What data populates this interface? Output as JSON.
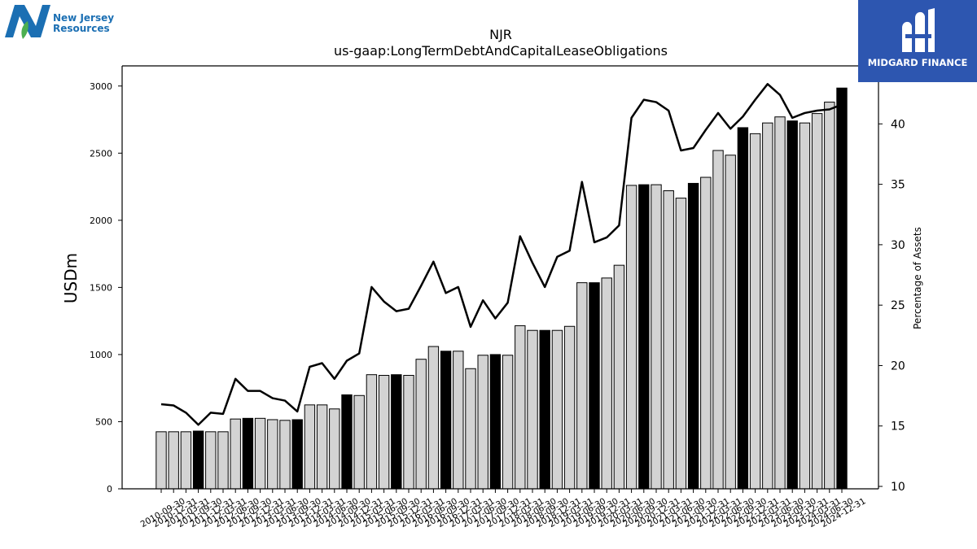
{
  "header": {
    "title_line1": "NJR",
    "title_line2": "us-gaap:LongTermDebtAndCapitalLeaseObligations"
  },
  "logos": {
    "left_text": "New Jersey\nResources",
    "right_text": "MIDGARD FINANCE"
  },
  "colors": {
    "bar_quarter": "#d3d3d3",
    "bar_year_end": "#000000",
    "line": "#000000",
    "left_logo_blue": "#1b6fb3",
    "left_logo_green": "#4caf50",
    "right_logo_bg": "#2d56b0"
  },
  "chart_data": {
    "type": "bar",
    "title": "NJR\nus-gaap:LongTermDebtAndCapitalLeaseObligations",
    "ylabel": "USDm",
    "y2label": "Percentage of Assets",
    "ylim": [
      0,
      3150
    ],
    "y2lim": [
      9.8,
      44.8
    ],
    "yticks": [
      0,
      500,
      1000,
      1500,
      2000,
      2500,
      3000
    ],
    "y2ticks": [
      10,
      15,
      20,
      25,
      30,
      35,
      40
    ],
    "grid": false,
    "categories": [
      "2010-09-30",
      "2010-12-31",
      "2011-03-31",
      "2011-09-30",
      "2011-12-31",
      "2012-03-31",
      "2012-06-30",
      "2012-09-30",
      "2012-12-31",
      "2013-03-31",
      "2013-06-30",
      "2013-09-30",
      "2013-12-31",
      "2014-03-31",
      "2014-06-30",
      "2014-09-30",
      "2014-12-31",
      "2015-03-31",
      "2015-06-30",
      "2015-09-30",
      "2015-12-31",
      "2016-03-31",
      "2016-06-30",
      "2016-09-30",
      "2016-12-31",
      "2017-03-31",
      "2017-06-30",
      "2017-09-30",
      "2017-12-31",
      "2018-03-31",
      "2018-06-30",
      "2018-09-30",
      "2018-12-31",
      "2019-03-31",
      "2019-06-30",
      "2019-09-30",
      "2019-12-31",
      "2020-03-31",
      "2020-06-30",
      "2020-09-30",
      "2020-12-31",
      "2021-03-31",
      "2021-06-30",
      "2021-09-30",
      "2021-12-31",
      "2022-03-31",
      "2022-06-30",
      "2022-09-30",
      "2022-12-31",
      "2023-03-31",
      "2023-06-30",
      "2023-09-30",
      "2023-12-31",
      "2024-03-31",
      "2024-06-30",
      "2024-12-31"
    ],
    "xtick_labels": [
      "2010-09-30",
      "2010-12-31",
      "2011-03-31",
      "2011-09-30",
      "2011-12-31",
      "2012-03-31",
      "2012-06-30",
      "2012-09-30",
      "2012-12-31",
      "2013-03-31",
      "2013-06-30",
      "2013-09-30",
      "2013-12-31",
      "2014-03-31",
      "2014-06-30",
      "2014-09-30",
      "2014-12-31",
      "2015-03-31",
      "2015-06-30",
      "2015-09-30",
      "2015-12-31",
      "2016-03-31",
      "2016-06-30",
      "2016-09-30",
      "2016-12-31",
      "2017-03-31",
      "2017-06-30",
      "2017-09-30",
      "2017-12-31",
      "2018-03-31",
      "2018-06-30",
      "2018-09-30",
      "2018-12-31",
      "2019-03-31",
      "2019-06-30",
      "2019-09-30",
      "2019-12-31",
      "2020-03-31",
      "2020-06-30",
      "2020-09-30",
      "2020-12-31",
      "2021-03-31",
      "2021-06-30",
      "2021-09-30",
      "2021-12-31",
      "2022-03-31",
      "2022-06-30",
      "2022-09-30",
      "2022-12-31",
      "2023-03-31",
      "2023-06-30",
      "2023-09-30",
      "2023-12-31",
      "2024-03-31",
      "2024-06-30",
      "2024-12-31"
    ],
    "series": [
      {
        "type": "bar",
        "axis": "left",
        "values": [
          425,
          425,
          425,
          430,
          425,
          425,
          520,
          525,
          525,
          515,
          510,
          515,
          625,
          625,
          595,
          700,
          695,
          850,
          845,
          850,
          845,
          965,
          1060,
          1025,
          1025,
          895,
          995,
          1000,
          995,
          1215,
          1180,
          1180,
          1180,
          1210,
          1535,
          1535,
          1570,
          1665,
          2260,
          2265,
          2265,
          2220,
          2165,
          2275,
          2320,
          2520,
          2485,
          2690,
          2645,
          2725,
          2770,
          2740,
          2725,
          2795,
          2880,
          2985
        ],
        "year_end": [
          false,
          false,
          false,
          true,
          false,
          false,
          false,
          true,
          false,
          false,
          false,
          true,
          false,
          false,
          false,
          true,
          false,
          false,
          false,
          true,
          false,
          false,
          false,
          true,
          false,
          false,
          false,
          true,
          false,
          false,
          false,
          true,
          false,
          false,
          false,
          true,
          false,
          false,
          false,
          true,
          false,
          false,
          false,
          true,
          false,
          false,
          false,
          true,
          false,
          false,
          false,
          true,
          false,
          false,
          false,
          true
        ]
      },
      {
        "type": "line",
        "axis": "right",
        "values": [
          16.8,
          16.7,
          16.1,
          15.1,
          16.1,
          16.0,
          18.9,
          17.9,
          17.9,
          17.3,
          17.1,
          16.2,
          19.9,
          20.2,
          18.9,
          20.4,
          21.0,
          26.5,
          25.3,
          24.5,
          24.7,
          26.6,
          28.6,
          26.0,
          26.5,
          23.2,
          25.4,
          23.9,
          25.2,
          30.7,
          28.5,
          26.5,
          29.0,
          29.5,
          35.2,
          30.2,
          30.6,
          31.6,
          40.5,
          42.0,
          41.8,
          41.1,
          37.8,
          38.0,
          39.5,
          40.9,
          39.6,
          40.6,
          42.0,
          43.3,
          42.4,
          40.5,
          40.9,
          41.1,
          41.2,
          41.6
        ]
      }
    ]
  }
}
